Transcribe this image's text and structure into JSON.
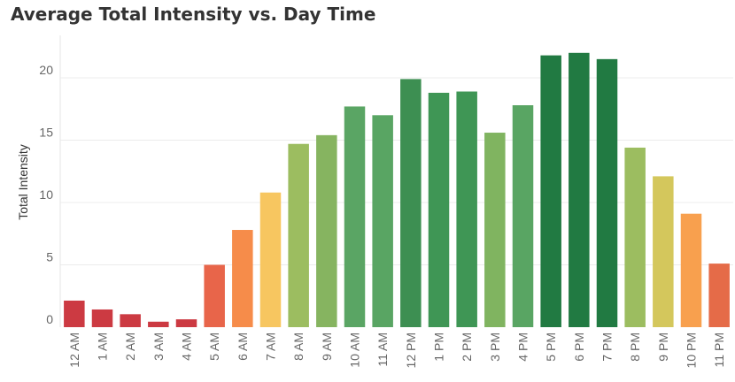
{
  "chart_data": {
    "type": "bar",
    "title": "Average Total Intensity vs. Day Time",
    "xlabel": "",
    "ylabel": "Total Intensity",
    "ylim": [
      0,
      22.5
    ],
    "yticks": [
      0,
      5,
      10,
      15,
      20
    ],
    "grid": true,
    "categories": [
      "12 AM",
      "1 AM",
      "2 AM",
      "3 AM",
      "4 AM",
      "5 AM",
      "6 AM",
      "7 AM",
      "8 AM",
      "9 AM",
      "10 AM",
      "11 AM",
      "12 PM",
      "1 PM",
      "2 PM",
      "3 PM",
      "4 PM",
      "5 PM",
      "6 PM",
      "7 PM",
      "8 PM",
      "9 PM",
      "10 PM",
      "11 PM"
    ],
    "values": [
      2.13,
      1.42,
      1.04,
      0.44,
      0.63,
      5.0,
      7.8,
      10.8,
      14.7,
      15.4,
      17.7,
      17.0,
      19.9,
      18.8,
      18.9,
      15.6,
      17.8,
      21.8,
      22.0,
      21.5,
      14.4,
      12.1,
      9.1,
      5.1
    ],
    "colors": [
      "#cc3a42",
      "#cc3a42",
      "#cc3a42",
      "#cc3a42",
      "#cc3a42",
      "#e8654a",
      "#f68c4a",
      "#f7c660",
      "#9cbd60",
      "#86b460",
      "#5aa564",
      "#59a563",
      "#3d8f52",
      "#3f9655",
      "#3f9655",
      "#80b460",
      "#59a563",
      "#217a42",
      "#217a42",
      "#217a42",
      "#9cbd60",
      "#d4c75c",
      "#f8a04e",
      "#e56b48"
    ]
  }
}
